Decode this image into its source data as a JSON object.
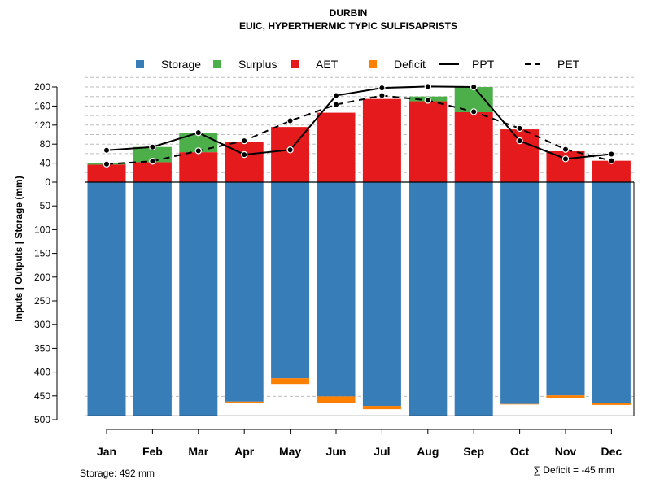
{
  "chart_data": {
    "type": "bar",
    "title": "DURBIN",
    "subtitle": "EUIC, HYPERTHERMIC TYPIC SULFISAPRISTS",
    "ylabel": "Inputs | Outputs | Storage     (mm)",
    "categories": [
      "Jan",
      "Feb",
      "Mar",
      "Apr",
      "May",
      "Jun",
      "Jul",
      "Aug",
      "Sep",
      "Oct",
      "Nov",
      "Dec"
    ],
    "upper_ylim": [
      0,
      200
    ],
    "upper_ticks": [
      0,
      40,
      80,
      120,
      160,
      200
    ],
    "upper_tick_labels": [
      "0",
      "40",
      "80",
      "120",
      "160",
      "200"
    ],
    "lower_ylim": [
      0,
      500
    ],
    "lower_ticks": [
      0,
      50,
      100,
      150,
      200,
      250,
      300,
      350,
      400,
      450,
      500
    ],
    "lower_tick_labels": [
      "0",
      "50",
      "100",
      "150",
      "200",
      "250",
      "300",
      "350",
      "400",
      "450",
      "500"
    ],
    "grid": true,
    "legend": [
      {
        "label": "Storage",
        "kind": "square",
        "color": "#377eb8"
      },
      {
        "label": "Surplus",
        "kind": "square",
        "color": "#4daf4a"
      },
      {
        "label": "AET",
        "kind": "square",
        "color": "#e41a1c"
      },
      {
        "label": "Deficit",
        "kind": "square",
        "color": "#ff7f00"
      },
      {
        "label": "PPT",
        "kind": "line",
        "color": "#000000"
      },
      {
        "label": "PET",
        "kind": "dashed",
        "color": "#000000"
      }
    ],
    "series": [
      {
        "name": "AET",
        "color": "#e41a1c",
        "values": [
          37,
          42,
          63,
          85,
          116,
          146,
          175,
          170,
          147,
          111,
          65,
          45
        ]
      },
      {
        "name": "Surplus",
        "color": "#4daf4a",
        "values": [
          3,
          32,
          40,
          0,
          0,
          0,
          0,
          10,
          53,
          0,
          0,
          0
        ]
      },
      {
        "name": "Storage",
        "color": "#377eb8",
        "values": [
          492,
          492,
          492,
          462,
          413,
          451,
          471,
          492,
          492,
          467,
          449,
          465
        ]
      },
      {
        "name": "Deficit",
        "color": "#ff7f00",
        "values": [
          0,
          0,
          0,
          2,
          12,
          14,
          7,
          0,
          0,
          1,
          5,
          4
        ]
      },
      {
        "name": "PPT",
        "color": "#000000",
        "values": [
          67,
          74,
          104,
          58,
          68,
          182,
          198,
          201,
          200,
          87,
          49,
          59
        ]
      },
      {
        "name": "PET",
        "color": "#000000",
        "values": [
          38,
          44,
          66,
          87,
          129,
          163,
          182,
          172,
          148,
          113,
          69,
          45
        ]
      }
    ],
    "storage_max": 492
  },
  "footer": {
    "storage_label": "Storage: 492 mm",
    "deficit_label": "∑ Deficit = -45 mm"
  }
}
